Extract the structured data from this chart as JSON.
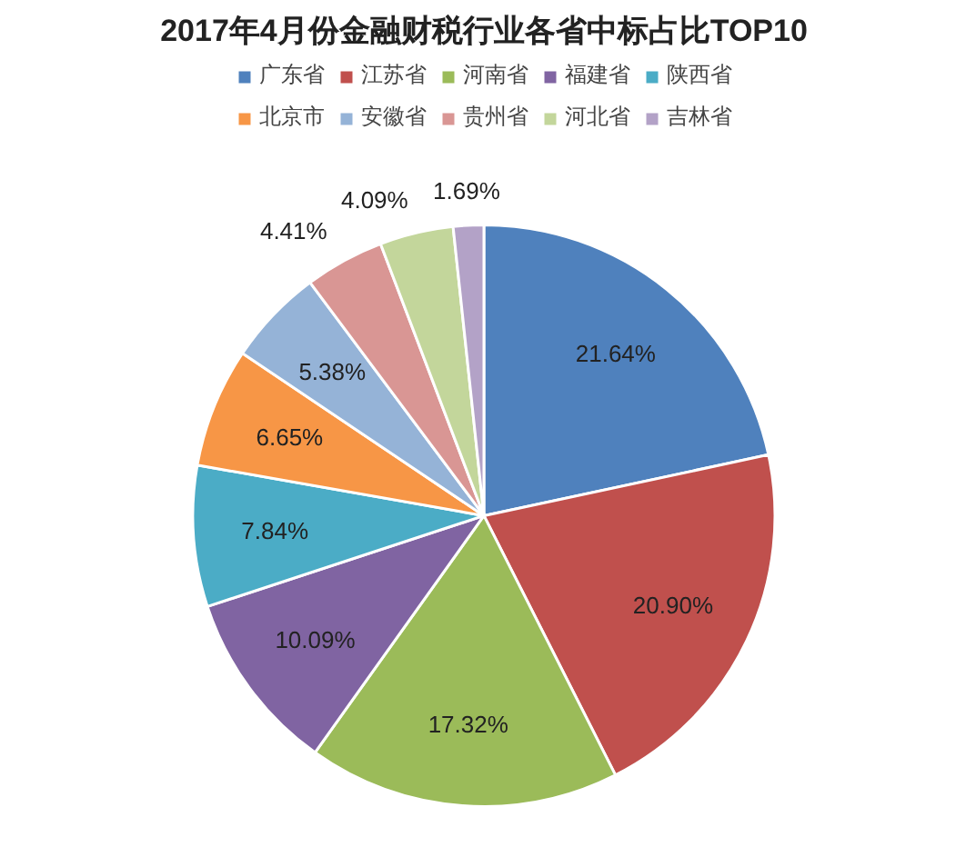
{
  "chart_data": {
    "type": "pie",
    "title": "2017年4月份金融财税行业各省中标占比TOP10",
    "categories": [
      "广东省",
      "江苏省",
      "河南省",
      "福建省",
      "陕西省",
      "北京市",
      "安徽省",
      "贵州省",
      "河北省",
      "吉林省"
    ],
    "values": [
      21.64,
      20.9,
      17.32,
      10.09,
      7.84,
      6.65,
      5.38,
      4.41,
      4.09,
      1.69
    ],
    "value_labels": [
      "21.64%",
      "20.90%",
      "17.32%",
      "10.09%",
      "7.84%",
      "6.65%",
      "5.38%",
      "4.41%",
      "4.09%",
      "1.69%"
    ],
    "colors": [
      "#4f81bd",
      "#c0504d",
      "#9bbb59",
      "#8064a2",
      "#4bacc6",
      "#f79646",
      "#95b3d7",
      "#d99694",
      "#c3d69b",
      "#b3a2c7"
    ],
    "legend": "top"
  }
}
